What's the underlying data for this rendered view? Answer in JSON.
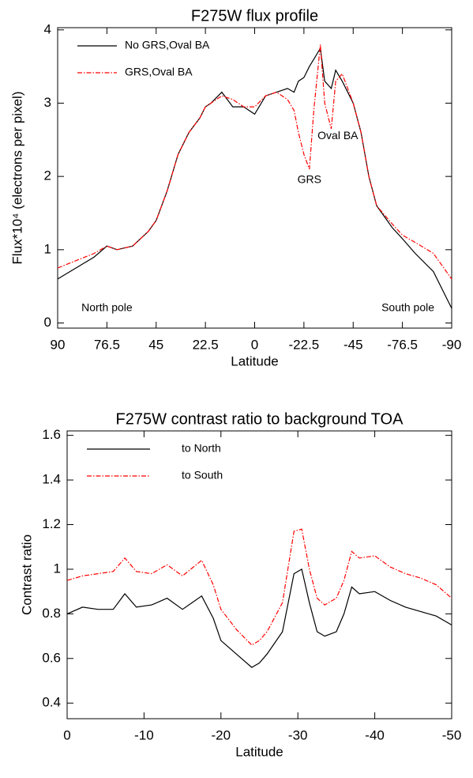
{
  "chart_data": [
    {
      "type": "line",
      "title": "F275W flux profile",
      "x_label": "Latitude",
      "y_label": "Flux*10⁴ (electrons per pixel)",
      "x": [
        90,
        85,
        80,
        76.5,
        70,
        60,
        50,
        45,
        40,
        35,
        30,
        25,
        22.5,
        20,
        15,
        10,
        5,
        0,
        -5,
        -10,
        -15,
        -18,
        -20,
        -22.5,
        -25,
        -27,
        -30,
        -32,
        -35,
        -37,
        -40,
        -45,
        -50,
        -55,
        -60,
        -70,
        -76.5,
        -80,
        -85,
        -90
      ],
      "series": [
        {
          "name": "No GRS,Oval BA",
          "color": "#000000",
          "dash": "solid",
          "values": [
            0.6,
            0.75,
            0.9,
            1.05,
            1.0,
            1.05,
            1.25,
            1.4,
            1.8,
            2.3,
            2.6,
            2.8,
            2.95,
            3.0,
            3.15,
            2.95,
            2.95,
            2.85,
            3.1,
            3.15,
            3.2,
            3.15,
            3.3,
            3.35,
            3.5,
            3.6,
            3.75,
            3.3,
            3.2,
            3.45,
            3.3,
            3.0,
            2.6,
            2.0,
            1.6,
            1.3,
            1.15,
            0.95,
            0.7,
            0.2
          ]
        },
        {
          "name": "GRS,Oval BA",
          "color": "#ff0000",
          "dash": "dashdot",
          "values": [
            0.75,
            0.85,
            0.95,
            1.05,
            1.0,
            1.05,
            1.25,
            1.4,
            1.8,
            2.3,
            2.6,
            2.8,
            2.95,
            3.0,
            3.1,
            3.05,
            2.95,
            2.95,
            3.1,
            3.15,
            3.05,
            2.9,
            2.6,
            2.3,
            2.1,
            2.9,
            3.8,
            3.0,
            2.65,
            3.3,
            3.4,
            3.0,
            2.6,
            2.0,
            1.6,
            1.35,
            1.2,
            1.1,
            0.95,
            0.6
          ]
        }
      ],
      "xlim": [
        90,
        -90
      ],
      "xticks": [
        90,
        76.5,
        45,
        22.5,
        0,
        -22.5,
        -45,
        -76.5,
        -90
      ],
      "ylim": [
        -0.07,
        4.03
      ],
      "yticks": [
        0,
        1,
        2,
        3,
        4
      ],
      "legend": "upper left",
      "annotations": [
        {
          "text": "GRS",
          "x": -25,
          "y": 1.95
        },
        {
          "text": "Oval BA",
          "x": -38,
          "y": 2.55
        },
        {
          "text": "North pole",
          "x": 76.5,
          "y": 0.2
        },
        {
          "text": "South pole",
          "x": -78,
          "y": 0.2
        }
      ]
    },
    {
      "type": "line",
      "title": "F275W contrast ratio to background TOA",
      "x_label": "Latitude",
      "y_label": "Contrast ratio",
      "x": [
        0,
        -2,
        -4,
        -6,
        -7.5,
        -9,
        -11,
        -13,
        -15,
        -17.5,
        -19,
        -20,
        -22,
        -24,
        -25,
        -26,
        -28,
        -29.5,
        -30.5,
        -31.5,
        -32.5,
        -33.5,
        -35,
        -36,
        -37,
        -38,
        -40,
        -42,
        -44,
        -46,
        -48,
        -50
      ],
      "series": [
        {
          "name": "to North",
          "color": "#000000",
          "dash": "solid",
          "values": [
            0.8,
            0.83,
            0.82,
            0.82,
            0.89,
            0.83,
            0.84,
            0.87,
            0.82,
            0.88,
            0.78,
            0.68,
            0.62,
            0.56,
            0.58,
            0.62,
            0.72,
            0.98,
            1.0,
            0.85,
            0.72,
            0.7,
            0.72,
            0.8,
            0.92,
            0.89,
            0.9,
            0.86,
            0.83,
            0.81,
            0.79,
            0.75
          ]
        },
        {
          "name": "to South",
          "color": "#ff0000",
          "dash": "dashdot",
          "values": [
            0.95,
            0.97,
            0.98,
            0.99,
            1.05,
            0.99,
            0.98,
            1.02,
            0.97,
            1.04,
            0.93,
            0.82,
            0.73,
            0.66,
            0.68,
            0.72,
            0.85,
            1.17,
            1.18,
            1.0,
            0.87,
            0.84,
            0.87,
            0.95,
            1.08,
            1.05,
            1.06,
            1.01,
            0.98,
            0.96,
            0.93,
            0.87
          ]
        }
      ],
      "xlim": [
        0,
        -50
      ],
      "xticks": [
        0,
        -10,
        -20,
        -30,
        -40,
        -50
      ],
      "ylim": [
        0.33,
        1.62
      ],
      "yticks": [
        0.4,
        0.6,
        0.8,
        1.0,
        1.2,
        1.4,
        1.6
      ],
      "legend": "upper left"
    }
  ]
}
